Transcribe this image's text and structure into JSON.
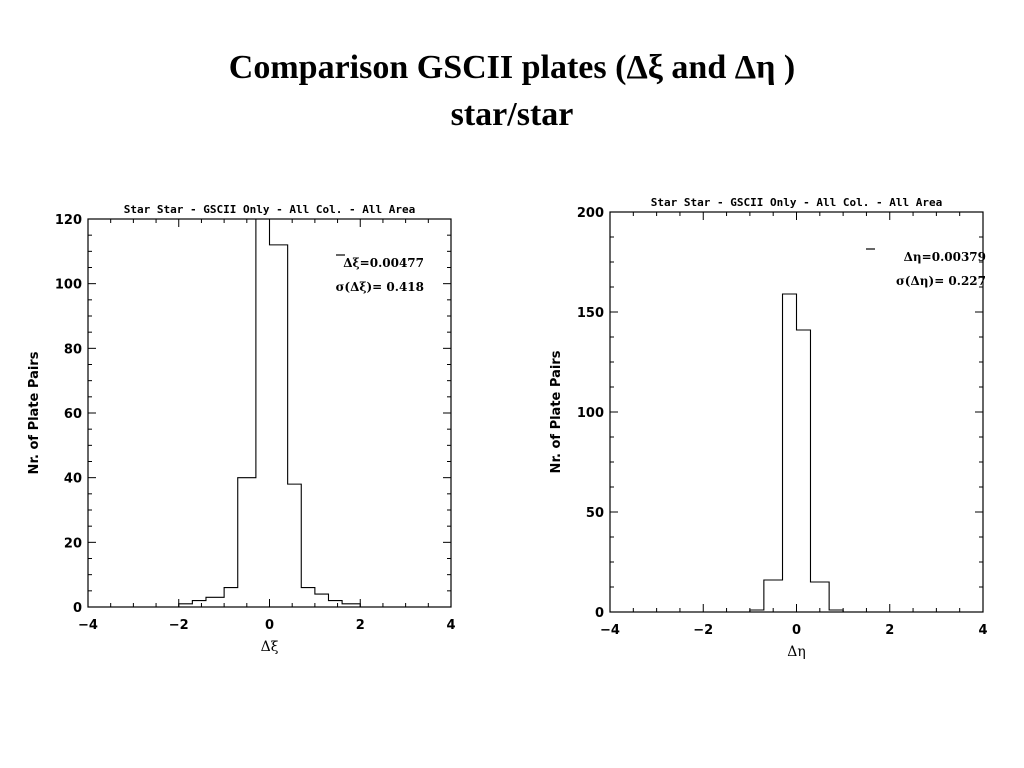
{
  "slide": {
    "title_line1": "Comparison GSCII plates (Δξ and Δη )",
    "title_line2": "star/star"
  },
  "chart_data": [
    {
      "type": "histogram",
      "title": "Star Star - GSCII Only - All Col. - All Area",
      "xlabel": "Δξ",
      "ylabel": "Nr. of Plate Pairs",
      "xlim": [
        -4,
        4
      ],
      "ylim": [
        0,
        120
      ],
      "xticks": [
        -4,
        -2,
        0,
        2,
        4
      ],
      "yticks": [
        0,
        20,
        40,
        60,
        80,
        100,
        120
      ],
      "xtick_labels": [
        "−4",
        "−2",
        "0",
        "2",
        "4"
      ],
      "ytick_labels": [
        "0",
        "20",
        "40",
        "60",
        "80",
        "100",
        "120"
      ],
      "annotations": [
        "Δξ=0.00477",
        "σ(Δξ)=   0.418"
      ],
      "bins": {
        "edges": [
          -2.0,
          -1.7,
          -1.4,
          -1.0,
          -0.7,
          -0.4,
          -0.3,
          0.0,
          0.4,
          0.7,
          1.0,
          1.3,
          1.6,
          2.0
        ],
        "counts": [
          1,
          2,
          3,
          6,
          40,
          40,
          120,
          112,
          38,
          6,
          4,
          2,
          1
        ]
      },
      "grid": false
    },
    {
      "type": "histogram",
      "title": "Star Star - GSCII Only - All Col. - All Area",
      "xlabel": "Δη",
      "ylabel": "Nr. of Plate Pairs",
      "xlim": [
        -4,
        4
      ],
      "ylim": [
        0,
        200
      ],
      "xticks": [
        -4,
        -2,
        0,
        2,
        4
      ],
      "yticks": [
        0,
        50,
        100,
        150,
        200
      ],
      "xtick_labels": [
        "−4",
        "−2",
        "0",
        "2",
        "4"
      ],
      "ytick_labels": [
        "0",
        "50",
        "100",
        "150",
        "200"
      ],
      "annotations": [
        "Δη=0.00379",
        "σ(Δη)=   0.227"
      ],
      "bins": {
        "edges": [
          -1.0,
          -0.7,
          -0.3,
          0.0,
          0.3,
          0.7,
          1.0
        ],
        "counts": [
          1,
          16,
          159,
          141,
          15,
          1
        ]
      },
      "grid": false
    }
  ]
}
